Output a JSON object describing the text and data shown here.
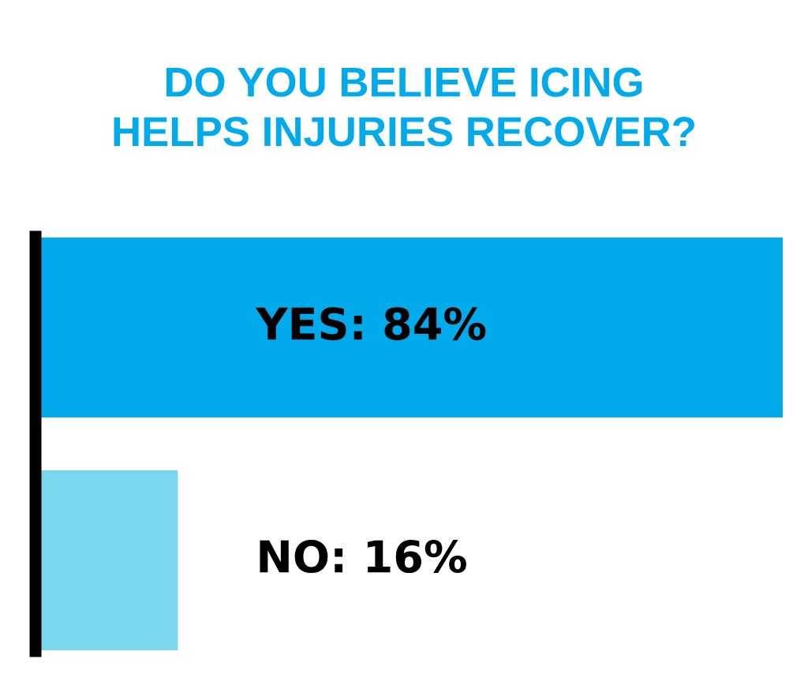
{
  "chart_data": {
    "type": "bar",
    "orientation": "horizontal",
    "title": "DO YOU BELIEVE ICING\nHELPS INJURIES RECOVER?",
    "categories": [
      null,
      null
    ],
    "values": [
      84,
      16
    ],
    "colors": [
      "#00aaeb",
      "#7ad6ec"
    ],
    "value_labels": [
      "YES: 84%",
      "NO: 16%"
    ]
  }
}
